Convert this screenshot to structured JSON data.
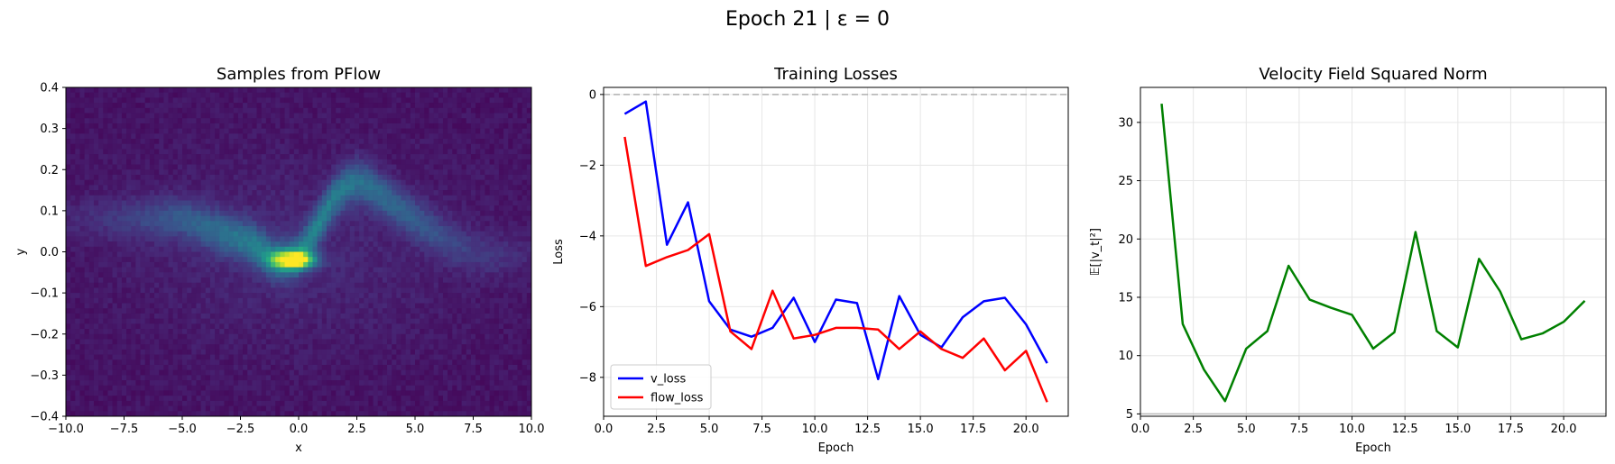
{
  "figure": {
    "suptitle": "Epoch 21 | ε = 0"
  },
  "chart_data": [
    {
      "type": "heatmap",
      "title": "Samples from PFlow",
      "xlabel": "x",
      "ylabel": "y",
      "xlim": [
        -10,
        10
      ],
      "ylim": [
        -0.4,
        0.4
      ],
      "xticks": [
        -10,
        -7.5,
        -5,
        -2.5,
        0,
        2.5,
        5,
        7.5,
        10
      ],
      "xtick_labels": [
        "−10.0",
        "−7.5",
        "−5.0",
        "−2.5",
        "0.0",
        "2.5",
        "5.0",
        "7.5",
        "10.0"
      ],
      "yticks": [
        -0.4,
        -0.3,
        -0.2,
        -0.1,
        0,
        0.1,
        0.2,
        0.3,
        0.4
      ],
      "ytick_labels": [
        "−0.4",
        "−0.3",
        "−0.2",
        "−0.1",
        "0.0",
        "0.1",
        "0.2",
        "0.3",
        "0.4"
      ],
      "colormap": "viridis",
      "density_path": {
        "x": [
          -5,
          -4,
          -3,
          -2,
          -1.5,
          -1,
          -0.5,
          0,
          0.5,
          1,
          1.5,
          2,
          2.5,
          3,
          4,
          5,
          6,
          7,
          8
        ],
        "y": [
          0.08,
          0.06,
          0.04,
          0.02,
          0.0,
          -0.02,
          -0.02,
          -0.01,
          0.03,
          0.08,
          0.13,
          0.16,
          0.17,
          0.16,
          0.12,
          0.08,
          0.04,
          0.01,
          -0.01
        ]
      },
      "peak": {
        "x": -0.2,
        "y": -0.02
      }
    },
    {
      "type": "line",
      "title": "Training Losses",
      "xlabel": "Epoch",
      "ylabel": "Loss",
      "xlim": [
        0,
        22.0
      ],
      "ylim": [
        -9.1,
        0.2
      ],
      "xticks": [
        0,
        2.5,
        5,
        7.5,
        10,
        12.5,
        15,
        17.5,
        20
      ],
      "xtick_labels": [
        "0.0",
        "2.5",
        "5.0",
        "7.5",
        "10.0",
        "12.5",
        "15.0",
        "17.5",
        "20.0"
      ],
      "yticks": [
        0,
        -2,
        -4,
        -6,
        -8
      ],
      "ytick_labels": [
        "0",
        "−2",
        "−4",
        "−6",
        "−8"
      ],
      "hline": 0,
      "grid": true,
      "legend": "lower-left",
      "x": [
        1,
        2,
        3,
        4,
        5,
        6,
        7,
        8,
        9,
        10,
        11,
        12,
        13,
        14,
        15,
        16,
        17,
        18,
        19,
        20,
        21
      ],
      "series": [
        {
          "name": "v_loss",
          "color": "#0000ff",
          "values": [
            -0.55,
            -0.2,
            -4.25,
            -3.05,
            -5.85,
            -6.65,
            -6.85,
            -6.6,
            -5.75,
            -7.0,
            -5.8,
            -5.9,
            -8.05,
            -5.7,
            -6.8,
            -7.15,
            -6.3,
            -5.85,
            -5.75,
            -6.5,
            -7.6
          ]
        },
        {
          "name": "flow_loss",
          "color": "#ff0000",
          "values": [
            -1.2,
            -4.85,
            -4.6,
            -4.4,
            -3.95,
            -6.7,
            -7.2,
            -5.55,
            -6.9,
            -6.8,
            -6.6,
            -6.6,
            -6.65,
            -7.2,
            -6.7,
            -7.2,
            -7.45,
            -6.9,
            -7.8,
            -7.25,
            -8.7
          ]
        }
      ]
    },
    {
      "type": "line",
      "title": "Velocity Field Squared Norm",
      "xlabel": "Epoch",
      "ylabel": "𝔼[|v_t|²]",
      "xlim": [
        0,
        22.0
      ],
      "ylim": [
        4.8,
        33
      ],
      "xticks": [
        0,
        2.5,
        5,
        7.5,
        10,
        12.5,
        15,
        17.5,
        20
      ],
      "xtick_labels": [
        "0.0",
        "2.5",
        "5.0",
        "7.5",
        "10.0",
        "12.5",
        "15.0",
        "17.5",
        "20.0"
      ],
      "yticks": [
        5,
        10,
        15,
        20,
        25,
        30
      ],
      "ytick_labels": [
        "5",
        "10",
        "15",
        "20",
        "25",
        "30"
      ],
      "hline": 5,
      "grid": true,
      "x": [
        1,
        2,
        3,
        4,
        5,
        6,
        7,
        8,
        9,
        10,
        11,
        12,
        13,
        14,
        15,
        16,
        17,
        18,
        19,
        20,
        21
      ],
      "series": [
        {
          "name": "",
          "color": "#008000",
          "values": [
            31.6,
            12.7,
            8.8,
            6.1,
            10.6,
            12.1,
            17.7,
            14.8,
            14.1,
            13.5,
            10.6,
            12.0,
            20.6,
            12.1,
            10.7,
            18.3,
            15.5,
            11.4,
            11.9,
            12.9,
            14.7
          ]
        }
      ]
    }
  ]
}
